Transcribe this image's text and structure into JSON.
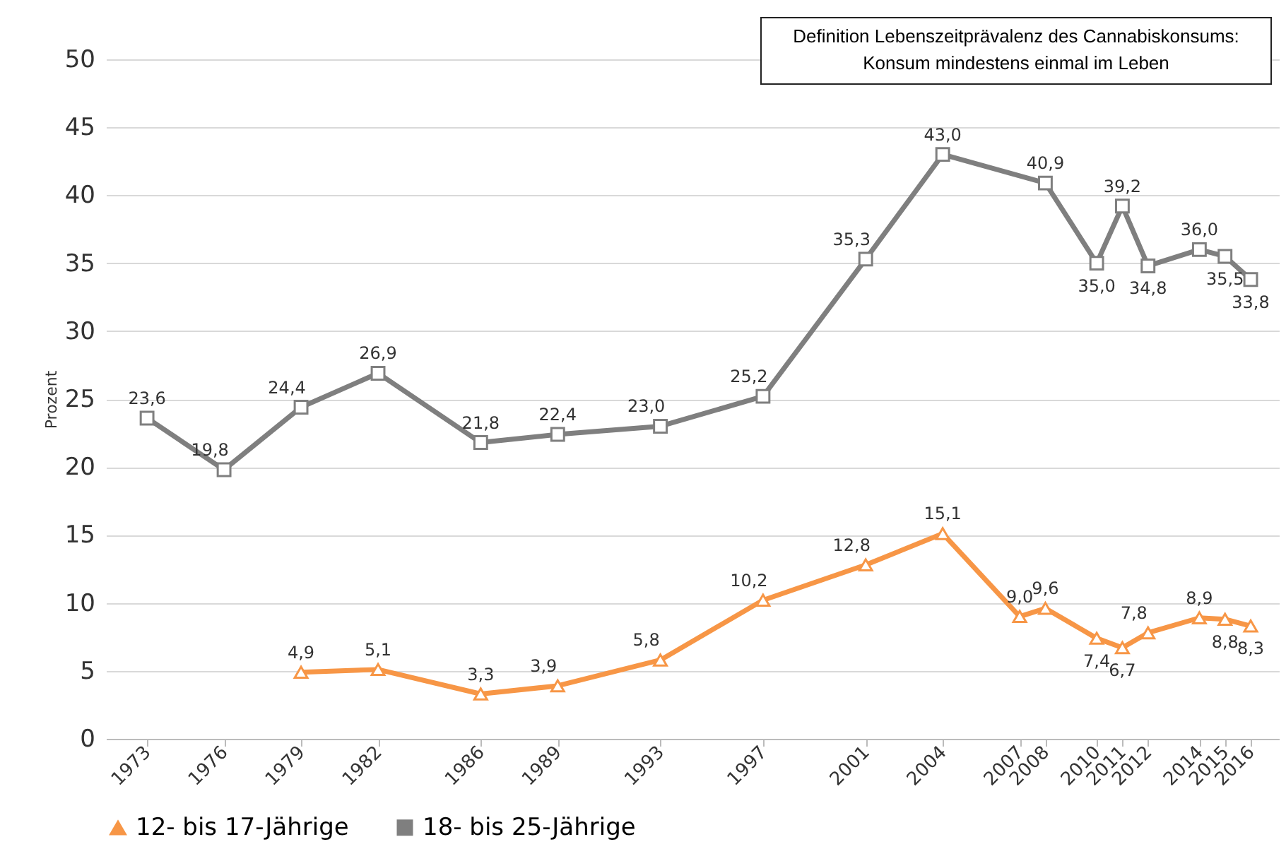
{
  "chart_data": {
    "type": "line",
    "ylabel": "Prozent",
    "annotations": [
      "Definition Lebenszeitprävalenz des Cannabiskonsums: Konsum mindestens einmal im Leben"
    ],
    "series": [
      {
        "name": "12- bis 17-Jährige",
        "color": "#f79646",
        "marker": "triangle",
        "x": [
          1979,
          1982,
          1986,
          1989,
          1993,
          1997,
          2001,
          2004,
          2007,
          2008,
          2010,
          2011,
          2012,
          2014,
          2015,
          2016
        ],
        "values": [
          4.9,
          5.1,
          3.3,
          3.9,
          5.8,
          10.2,
          12.8,
          15.1,
          9.0,
          9.6,
          7.4,
          6.7,
          7.8,
          8.9,
          8.8,
          8.3
        ],
        "value_labels": [
          "4,9",
          "5,1",
          "3,3",
          "3,9",
          "5,8",
          "10,2",
          "12,8",
          "15,1",
          "9,0",
          "9,6",
          "7,4",
          "6,7",
          "7,8",
          "8,9",
          "8,8",
          "8,3"
        ]
      },
      {
        "name": "18- bis 25-Jährige",
        "color": "#7f7f7f",
        "marker": "square",
        "x": [
          1973,
          1976,
          1979,
          1982,
          1986,
          1989,
          1993,
          1997,
          2001,
          2004,
          2008,
          2010,
          2011,
          2012,
          2014,
          2015,
          2016
        ],
        "values": [
          23.6,
          19.8,
          24.4,
          26.9,
          21.8,
          22.4,
          23.0,
          25.2,
          35.3,
          43.0,
          40.9,
          35.0,
          39.2,
          34.8,
          36.0,
          35.5,
          33.8
        ],
        "value_labels": [
          "23,6",
          "19,8",
          "24,4",
          "26,9",
          "21,8",
          "22,4",
          "23,0",
          "25,2",
          "35,3",
          "43,0",
          "40,9",
          "35,0",
          "39,2",
          "34,8",
          "36,0",
          "35,5",
          "33,8"
        ]
      }
    ],
    "xlim": [
      1971.4,
      2017.1
    ],
    "xticks": [
      1973,
      1976,
      1979,
      1982,
      1986,
      1989,
      1993,
      1997,
      2001,
      2004,
      2007,
      2008,
      2010,
      2011,
      2012,
      2014,
      2015,
      2016
    ],
    "ylim": [
      0,
      50
    ],
    "yticks": [
      0,
      5,
      10,
      15,
      20,
      25,
      30,
      35,
      40,
      45,
      50
    ],
    "grid": "y",
    "legend": "bottom",
    "line_style": "solid"
  }
}
